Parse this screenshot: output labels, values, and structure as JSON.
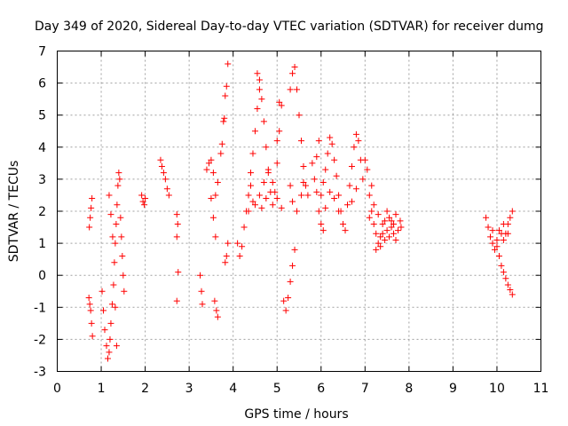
{
  "chart_data": {
    "type": "scatter",
    "title": "Day 349 of 2020, Sidereal Day-to-day VTEC variation (SDTVAR) for receiver dumg",
    "xlabel": "GPS time / hours",
    "ylabel": "SDTVAR / TECUs",
    "xlim": [
      0,
      11
    ],
    "ylim": [
      -3,
      7
    ],
    "xticks": [
      0,
      1,
      2,
      3,
      4,
      5,
      6,
      7,
      8,
      9,
      10,
      11
    ],
    "yticks": [
      -3,
      -2,
      -1,
      0,
      1,
      2,
      3,
      4,
      5,
      6,
      7
    ],
    "grid": true,
    "marker": "+",
    "color": "#ff0000",
    "series": [
      {
        "name": "SDTVAR",
        "points": [
          [
            0.72,
            -0.7
          ],
          [
            0.74,
            -0.9
          ],
          [
            0.76,
            -1.1
          ],
          [
            0.78,
            -1.5
          ],
          [
            0.8,
            -1.9
          ],
          [
            0.73,
            1.5
          ],
          [
            0.75,
            1.8
          ],
          [
            0.77,
            2.1
          ],
          [
            0.79,
            2.4
          ],
          [
            1.02,
            -0.5
          ],
          [
            1.05,
            -1.1
          ],
          [
            1.08,
            -1.7
          ],
          [
            1.12,
            -2.2
          ],
          [
            1.15,
            -2.6
          ],
          [
            1.18,
            -2.4
          ],
          [
            1.2,
            -2.0
          ],
          [
            1.22,
            -1.5
          ],
          [
            1.25,
            -0.9
          ],
          [
            1.28,
            -0.3
          ],
          [
            1.3,
            0.4
          ],
          [
            1.32,
            1.0
          ],
          [
            1.34,
            1.6
          ],
          [
            1.36,
            2.2
          ],
          [
            1.38,
            2.8
          ],
          [
            1.4,
            3.2
          ],
          [
            1.42,
            3.0
          ],
          [
            1.18,
            2.5
          ],
          [
            1.22,
            1.9
          ],
          [
            1.26,
            1.2
          ],
          [
            1.44,
            1.8
          ],
          [
            1.46,
            1.2
          ],
          [
            1.48,
            0.6
          ],
          [
            1.5,
            0.0
          ],
          [
            1.52,
            -0.5
          ],
          [
            1.32,
            -1.0
          ],
          [
            1.35,
            -2.2
          ],
          [
            1.92,
            2.5
          ],
          [
            1.95,
            2.3
          ],
          [
            1.98,
            2.2
          ],
          [
            2.0,
            2.4
          ],
          [
            2.35,
            3.6
          ],
          [
            2.38,
            3.4
          ],
          [
            2.42,
            3.2
          ],
          [
            2.46,
            3.0
          ],
          [
            2.5,
            2.7
          ],
          [
            2.54,
            2.5
          ],
          [
            2.72,
            1.9
          ],
          [
            2.74,
            1.6
          ],
          [
            2.72,
            1.2
          ],
          [
            2.75,
            0.1
          ],
          [
            2.72,
            -0.8
          ],
          [
            3.25,
            0.0
          ],
          [
            3.28,
            -0.5
          ],
          [
            3.3,
            -0.9
          ],
          [
            3.4,
            3.3
          ],
          [
            3.45,
            3.5
          ],
          [
            3.5,
            3.6
          ],
          [
            3.55,
            3.2
          ],
          [
            3.5,
            2.4
          ],
          [
            3.55,
            1.8
          ],
          [
            3.6,
            1.2
          ],
          [
            3.58,
            -0.8
          ],
          [
            3.62,
            -1.1
          ],
          [
            3.65,
            -1.3
          ],
          [
            3.6,
            2.5
          ],
          [
            3.65,
            2.9
          ],
          [
            3.72,
            3.8
          ],
          [
            3.75,
            4.1
          ],
          [
            3.78,
            4.8
          ],
          [
            3.8,
            4.9
          ],
          [
            3.82,
            5.6
          ],
          [
            3.85,
            5.9
          ],
          [
            3.88,
            6.6
          ],
          [
            3.82,
            0.4
          ],
          [
            3.85,
            0.6
          ],
          [
            3.88,
            1.0
          ],
          [
            4.1,
            1.0
          ],
          [
            4.15,
            0.6
          ],
          [
            4.2,
            0.9
          ],
          [
            4.25,
            1.5
          ],
          [
            4.3,
            2.0
          ],
          [
            4.35,
            2.5
          ],
          [
            4.4,
            3.2
          ],
          [
            4.45,
            3.8
          ],
          [
            4.5,
            4.5
          ],
          [
            4.55,
            5.2
          ],
          [
            4.6,
            5.8
          ],
          [
            4.55,
            6.3
          ],
          [
            4.6,
            6.1
          ],
          [
            4.65,
            5.5
          ],
          [
            4.7,
            4.8
          ],
          [
            4.75,
            4.0
          ],
          [
            4.8,
            3.2
          ],
          [
            4.85,
            2.6
          ],
          [
            4.9,
            2.2
          ],
          [
            4.95,
            2.6
          ],
          [
            5.0,
            3.5
          ],
          [
            5.05,
            4.5
          ],
          [
            5.1,
            5.3
          ],
          [
            5.05,
            5.4
          ],
          [
            5.0,
            4.2
          ],
          [
            4.4,
            2.8
          ],
          [
            4.5,
            2.2
          ],
          [
            4.6,
            2.5
          ],
          [
            4.7,
            2.9
          ],
          [
            4.8,
            3.3
          ],
          [
            4.9,
            2.9
          ],
          [
            5.0,
            2.4
          ],
          [
            5.1,
            2.1
          ],
          [
            4.35,
            2.0
          ],
          [
            4.45,
            2.3
          ],
          [
            4.65,
            2.1
          ],
          [
            4.75,
            2.4
          ],
          [
            5.15,
            -0.8
          ],
          [
            5.2,
            -1.1
          ],
          [
            5.25,
            -0.7
          ],
          [
            5.3,
            -0.2
          ],
          [
            5.35,
            0.3
          ],
          [
            5.4,
            0.8
          ],
          [
            5.3,
            5.8
          ],
          [
            5.35,
            6.3
          ],
          [
            5.4,
            6.5
          ],
          [
            5.45,
            5.8
          ],
          [
            5.5,
            5.0
          ],
          [
            5.55,
            4.2
          ],
          [
            5.6,
            3.4
          ],
          [
            5.65,
            2.8
          ],
          [
            5.7,
            2.5
          ],
          [
            5.3,
            2.8
          ],
          [
            5.35,
            2.3
          ],
          [
            5.45,
            2.0
          ],
          [
            5.55,
            2.5
          ],
          [
            5.6,
            2.9
          ],
          [
            5.8,
            3.5
          ],
          [
            5.85,
            3.0
          ],
          [
            5.9,
            2.6
          ],
          [
            5.95,
            2.0
          ],
          [
            6.0,
            1.6
          ],
          [
            6.05,
            1.4
          ],
          [
            5.9,
            3.7
          ],
          [
            5.95,
            4.2
          ],
          [
            6.0,
            2.5
          ],
          [
            6.05,
            2.9
          ],
          [
            6.1,
            3.3
          ],
          [
            6.15,
            3.8
          ],
          [
            6.2,
            4.3
          ],
          [
            6.25,
            4.1
          ],
          [
            6.3,
            3.6
          ],
          [
            6.35,
            3.1
          ],
          [
            6.4,
            2.5
          ],
          [
            6.45,
            2.0
          ],
          [
            6.5,
            1.6
          ],
          [
            6.55,
            1.4
          ],
          [
            6.1,
            2.1
          ],
          [
            6.2,
            2.6
          ],
          [
            6.3,
            2.4
          ],
          [
            6.4,
            2.0
          ],
          [
            6.6,
            2.2
          ],
          [
            6.65,
            2.8
          ],
          [
            6.7,
            3.4
          ],
          [
            6.75,
            4.0
          ],
          [
            6.8,
            4.4
          ],
          [
            6.85,
            4.2
          ],
          [
            6.9,
            3.6
          ],
          [
            6.95,
            3.0
          ],
          [
            6.7,
            2.3
          ],
          [
            6.8,
            2.7
          ],
          [
            7.0,
            3.6
          ],
          [
            7.05,
            3.3
          ],
          [
            7.1,
            2.5
          ],
          [
            7.15,
            2.0
          ],
          [
            7.2,
            1.6
          ],
          [
            7.25,
            1.3
          ],
          [
            7.3,
            1.0
          ],
          [
            7.35,
            0.9
          ],
          [
            7.4,
            1.3
          ],
          [
            7.45,
            1.7
          ],
          [
            7.5,
            2.0
          ],
          [
            7.55,
            1.8
          ],
          [
            7.6,
            1.5
          ],
          [
            7.65,
            1.3
          ],
          [
            7.7,
            1.1
          ],
          [
            7.75,
            1.4
          ],
          [
            7.8,
            1.7
          ],
          [
            7.82,
            1.5
          ],
          [
            7.1,
            1.8
          ],
          [
            7.2,
            2.2
          ],
          [
            7.3,
            1.9
          ],
          [
            7.4,
            1.6
          ],
          [
            7.5,
            1.4
          ],
          [
            7.6,
            1.7
          ],
          [
            7.7,
            1.9
          ],
          [
            7.25,
            0.8
          ],
          [
            7.35,
            1.2
          ],
          [
            7.45,
            1.1
          ],
          [
            7.55,
            1.2
          ],
          [
            7.65,
            1.6
          ],
          [
            7.15,
            2.8
          ],
          [
            9.75,
            1.8
          ],
          [
            9.8,
            1.5
          ],
          [
            9.85,
            1.2
          ],
          [
            9.9,
            1.0
          ],
          [
            9.95,
            0.8
          ],
          [
            10.0,
            1.1
          ],
          [
            10.05,
            1.4
          ],
          [
            10.1,
            1.3
          ],
          [
            10.15,
            1.1
          ],
          [
            10.2,
            1.3
          ],
          [
            10.25,
            1.6
          ],
          [
            10.3,
            1.8
          ],
          [
            10.35,
            2.0
          ],
          [
            10.05,
            0.6
          ],
          [
            10.1,
            0.3
          ],
          [
            10.15,
            0.1
          ],
          [
            10.2,
            -0.1
          ],
          [
            10.25,
            -0.3
          ],
          [
            10.3,
            -0.45
          ],
          [
            10.35,
            -0.6
          ],
          [
            9.9,
            1.4
          ],
          [
            10.0,
            0.9
          ],
          [
            10.15,
            1.6
          ],
          [
            10.25,
            1.3
          ]
        ]
      }
    ]
  }
}
